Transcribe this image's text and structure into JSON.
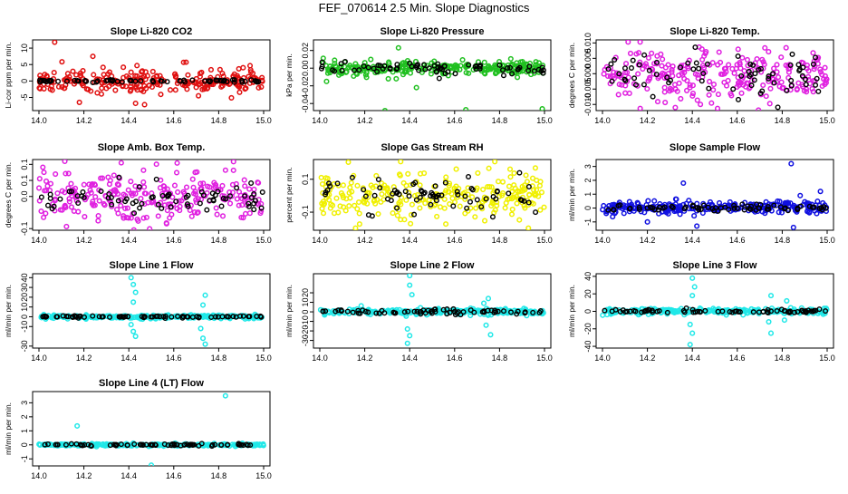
{
  "page_title": "FEF_070614  2.5 Min. Slope Diagnostics",
  "chart_data": [
    {
      "type": "scatter",
      "title": "Slope Li-820 CO2",
      "ylabel": "Li-cor ppm per min.",
      "xlabel": "",
      "xlim": [
        14.0,
        15.0
      ],
      "ylim": [
        -9,
        12.5
      ],
      "xticks": [
        14.0,
        14.2,
        14.4,
        14.6,
        14.8,
        15.0
      ],
      "yticks": [
        -5,
        0,
        5,
        10
      ],
      "color": "#e01010",
      "noise": 2.2,
      "spikes": [
        [
          14.07,
          11.8
        ],
        [
          14.18,
          -6.5
        ],
        [
          14.47,
          -7.2
        ],
        [
          14.43,
          -6.8
        ],
        [
          14.71,
          -4.5
        ],
        [
          14.24,
          7.5
        ]
      ],
      "black_noise": 0.3,
      "series": [
        {
          "name": "slope",
          "color": "#e01010"
        },
        {
          "name": "reference",
          "color": "#000000"
        }
      ]
    },
    {
      "type": "scatter",
      "title": "Slope Li-820 Pressure",
      "ylabel": "kPa per min.",
      "xlabel": "",
      "xlim": [
        14.0,
        15.0
      ],
      "ylim": [
        -0.048,
        0.032
      ],
      "xticks": [
        14.0,
        14.2,
        14.4,
        14.6,
        14.8,
        15.0
      ],
      "yticks": [
        -0.04,
        -0.02,
        0.0,
        0.02
      ],
      "color": "#20c020",
      "noise": 0.005,
      "spikes": [
        [
          14.35,
          0.023
        ],
        [
          14.34,
          -0.012
        ],
        [
          14.43,
          -0.022
        ],
        [
          14.65,
          -0.047
        ],
        [
          14.99,
          -0.046
        ],
        [
          14.29,
          -0.048
        ],
        [
          14.03,
          -0.015
        ]
      ],
      "black_noise": 0.004,
      "series": [
        {
          "name": "slope",
          "color": "#20c020"
        },
        {
          "name": "reference",
          "color": "#000000"
        }
      ]
    },
    {
      "type": "scatter",
      "title": "Slope Li-820 Temp.",
      "ylabel": "degrees C per min.",
      "xlabel": "",
      "xlim": [
        14.0,
        15.0
      ],
      "ylim": [
        -0.012,
        0.011
      ],
      "xticks": [
        14.0,
        14.2,
        14.4,
        14.6,
        14.8,
        15.0
      ],
      "yticks": [
        -0.01,
        -0.005,
        0.0,
        0.005,
        0.01
      ],
      "color": "#e020e0",
      "noise": 0.0055,
      "spikes": [],
      "black_noise": 0.004,
      "series": [
        {
          "name": "slope",
          "color": "#e020e0"
        },
        {
          "name": "reference",
          "color": "#000000"
        }
      ]
    },
    {
      "type": "scatter",
      "title": "Slope Amb. Box Temp.",
      "ylabel": "degrees C per min.",
      "xlabel": "",
      "xlim": [
        14.0,
        15.0
      ],
      "ylim": [
        -0.105,
        0.115
      ],
      "xticks": [
        14.0,
        14.2,
        14.4,
        14.6,
        14.8,
        15.0
      ],
      "yticks": [
        -0.1,
        0.0,
        0.05,
        0.1
      ],
      "color": "#e020e0",
      "noise": 0.05,
      "spikes": [],
      "black_noise": 0.03,
      "series": [
        {
          "name": "slope",
          "color": "#e020e0"
        },
        {
          "name": "reference",
          "color": "#000000"
        }
      ]
    },
    {
      "type": "scatter",
      "title": "Slope Gas Stream RH",
      "ylabel": "percent per min.",
      "xlabel": "",
      "xlim": [
        14.0,
        15.0
      ],
      "ylim": [
        -0.21,
        0.22
      ],
      "xticks": [
        14.0,
        14.2,
        14.4,
        14.6,
        14.8,
        15.0
      ],
      "yticks": [
        -0.1,
        0.1
      ],
      "color": "#f0f000",
      "noise": 0.085,
      "spikes": [],
      "black_noise": 0.06,
      "series": [
        {
          "name": "slope",
          "color": "#f0f000"
        },
        {
          "name": "reference",
          "color": "#000000"
        }
      ]
    },
    {
      "type": "scatter",
      "title": "Slope Sample Flow",
      "ylabel": "ml/min per min.",
      "xlabel": "",
      "xlim": [
        14.0,
        15.0
      ],
      "ylim": [
        -1.6,
        3.5
      ],
      "xticks": [
        14.0,
        14.2,
        14.4,
        14.6,
        14.8,
        15.0
      ],
      "yticks": [
        -1,
        0,
        1,
        2,
        3
      ],
      "color": "#1010e0",
      "noise": 0.3,
      "spikes": [
        [
          14.84,
          3.2
        ],
        [
          14.36,
          1.8
        ],
        [
          14.42,
          -1.3
        ],
        [
          14.85,
          -1.4
        ],
        [
          14.88,
          0.9
        ],
        [
          14.97,
          1.2
        ],
        [
          14.2,
          -1.0
        ]
      ],
      "black_noise": 0.15,
      "series": [
        {
          "name": "slope",
          "color": "#1010e0"
        },
        {
          "name": "reference",
          "color": "#000000"
        }
      ]
    },
    {
      "type": "scatter",
      "title": "Slope Line 1 Flow",
      "ylabel": "ml/min per min.",
      "xlabel": "",
      "xlim": [
        14.0,
        15.0
      ],
      "ylim": [
        -32,
        44
      ],
      "xticks": [
        14.0,
        14.2,
        14.4,
        14.6,
        14.8,
        15.0
      ],
      "yticks": [
        -30,
        -10,
        0,
        10,
        20,
        30,
        40
      ],
      "color": "#20e8e8",
      "noise": 1.2,
      "spikes": [
        [
          14.41,
          40
        ],
        [
          14.42,
          33
        ],
        [
          14.43,
          25
        ],
        [
          14.42,
          15
        ],
        [
          14.41,
          -8
        ],
        [
          14.42,
          -15
        ],
        [
          14.43,
          -20
        ],
        [
          14.74,
          22
        ],
        [
          14.73,
          12
        ],
        [
          14.72,
          -12
        ],
        [
          14.73,
          -22
        ],
        [
          14.74,
          -28
        ]
      ],
      "black_noise": 0.6,
      "series": [
        {
          "name": "slope",
          "color": "#20e8e8"
        },
        {
          "name": "reference",
          "color": "#000000"
        }
      ]
    },
    {
      "type": "scatter",
      "title": "Slope Line 2 Flow",
      "ylabel": "ml/min per min.",
      "xlabel": "",
      "xlim": [
        14.0,
        15.0
      ],
      "ylim": [
        -38,
        40
      ],
      "xticks": [
        14.0,
        14.2,
        14.4,
        14.6,
        14.8,
        15.0
      ],
      "yticks": [
        -30,
        -20,
        -10,
        0,
        10,
        20
      ],
      "color": "#20e8e8",
      "noise": 2.0,
      "spikes": [
        [
          14.4,
          38
        ],
        [
          14.4,
          28
        ],
        [
          14.41,
          18
        ],
        [
          14.39,
          -18
        ],
        [
          14.4,
          -25
        ],
        [
          14.39,
          -33
        ],
        [
          14.75,
          14
        ],
        [
          14.74,
          -14
        ],
        [
          14.76,
          -24
        ],
        [
          14.73,
          9
        ]
      ],
      "black_noise": 1.5,
      "series": [
        {
          "name": "slope",
          "color": "#20e8e8"
        },
        {
          "name": "reference",
          "color": "#000000"
        }
      ]
    },
    {
      "type": "scatter",
      "title": "Slope Line 3 Flow",
      "ylabel": "ml/min per min.",
      "xlabel": "",
      "xlim": [
        14.0,
        15.0
      ],
      "ylim": [
        -42,
        43
      ],
      "xticks": [
        14.0,
        14.2,
        14.4,
        14.6,
        14.8,
        15.0
      ],
      "yticks": [
        -40,
        -20,
        0,
        20,
        40
      ],
      "color": "#20e8e8",
      "noise": 2.0,
      "spikes": [
        [
          14.4,
          38
        ],
        [
          14.41,
          28
        ],
        [
          14.4,
          18
        ],
        [
          14.39,
          -15
        ],
        [
          14.4,
          -25
        ],
        [
          14.39,
          -38
        ],
        [
          14.75,
          18
        ],
        [
          14.74,
          -12
        ],
        [
          14.75,
          -25
        ],
        [
          14.81,
          -10
        ],
        [
          14.82,
          12
        ]
      ],
      "black_noise": 1.5,
      "series": [
        {
          "name": "slope",
          "color": "#20e8e8"
        },
        {
          "name": "reference",
          "color": "#000000"
        }
      ]
    },
    {
      "type": "scatter",
      "title": "Slope Line 4 (LT) Flow",
      "ylabel": "ml/min per min.",
      "xlabel": "",
      "xlim": [
        14.0,
        15.0
      ],
      "ylim": [
        -1.5,
        3.8
      ],
      "xticks": [
        14.0,
        14.2,
        14.4,
        14.6,
        14.8,
        15.0
      ],
      "yticks": [
        -1,
        0,
        1,
        2,
        3
      ],
      "color": "#20e8e8",
      "noise": 0.05,
      "spikes": [
        [
          14.17,
          1.35
        ],
        [
          14.83,
          3.5
        ],
        [
          14.5,
          -1.45
        ],
        [
          14.42,
          0.12
        ],
        [
          14.78,
          0.1
        ]
      ],
      "black_noise": 0.04,
      "series": [
        {
          "name": "slope",
          "color": "#20e8e8"
        },
        {
          "name": "reference",
          "color": "#000000"
        }
      ]
    }
  ]
}
